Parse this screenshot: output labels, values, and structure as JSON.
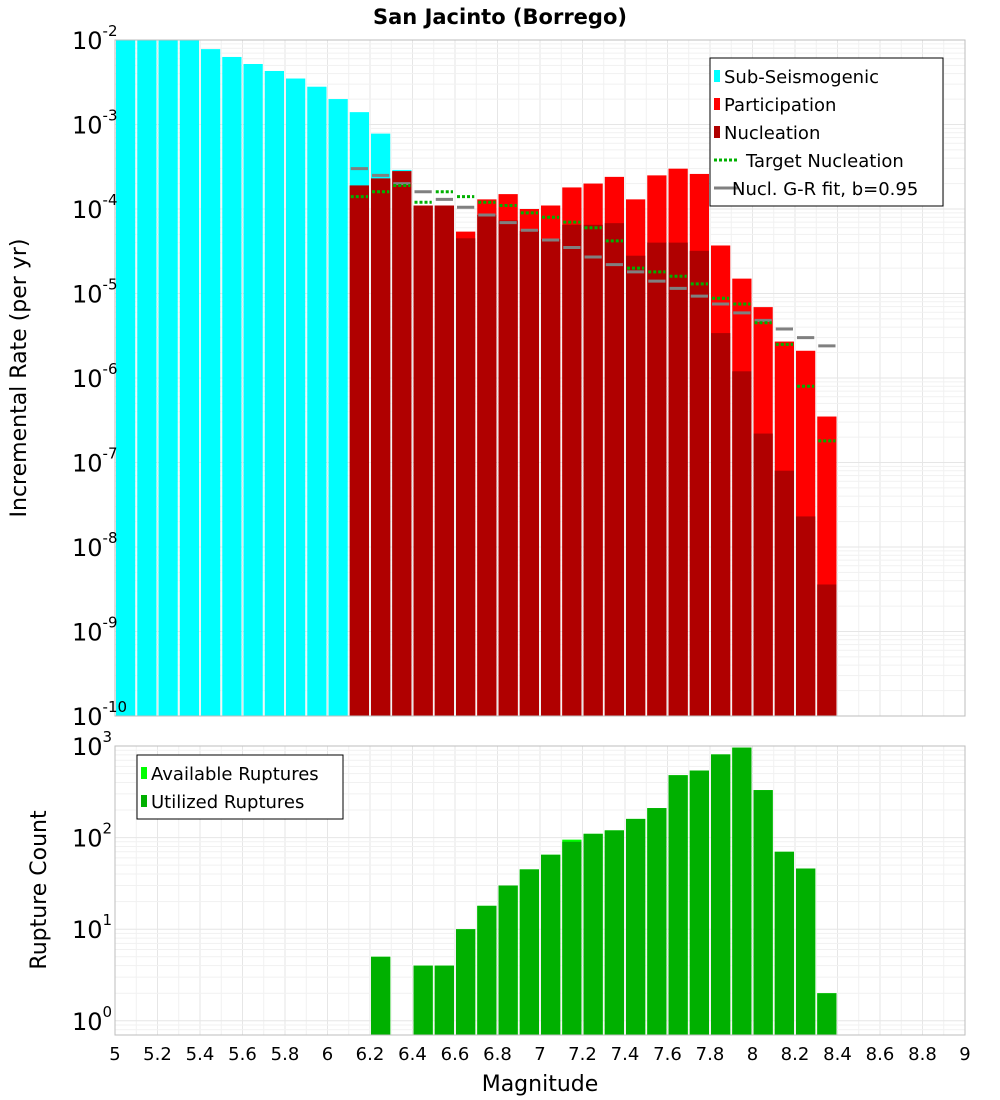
{
  "chart_data": [
    {
      "type": "bar",
      "title": "San Jacinto (Borrego)",
      "xlabel": "",
      "ylabel": "Incremental Rate (per yr)",
      "yscale": "log",
      "ylim": [
        1e-10,
        0.01
      ],
      "xlim": [
        5,
        9
      ],
      "bin_width": 0.1,
      "grid": true,
      "legend_position": "top-right",
      "y_ticks": [
        {
          "base": "10",
          "exp": "-10"
        },
        {
          "base": "10",
          "exp": "-9"
        },
        {
          "base": "10",
          "exp": "-8"
        },
        {
          "base": "10",
          "exp": "-7"
        },
        {
          "base": "10",
          "exp": "-6"
        },
        {
          "base": "10",
          "exp": "-5"
        },
        {
          "base": "10",
          "exp": "-4"
        },
        {
          "base": "10",
          "exp": "-3"
        },
        {
          "base": "10",
          "exp": "-2"
        }
      ],
      "legend": [
        {
          "label": "Sub-Seismogenic",
          "color": "#00ffff",
          "style": "bar"
        },
        {
          "label": "Participation",
          "color": "#ff0000",
          "style": "bar"
        },
        {
          "label": "Nucleation",
          "color": "#b00000",
          "style": "bar"
        },
        {
          "label": "Target Nucleation",
          "color": "#00b000",
          "style": "dotted"
        },
        {
          "label": "Nucl. G-R fit, b=0.95",
          "color": "#808080",
          "style": "line"
        }
      ],
      "series": [
        {
          "name": "Sub-Seismogenic",
          "color": "#00ffff",
          "x": [
            5.0,
            5.1,
            5.2,
            5.3,
            5.4,
            5.5,
            5.6,
            5.7,
            5.8,
            5.9,
            6.0,
            6.1,
            6.2,
            6.3
          ],
          "values": [
            0.01,
            0.01,
            0.01,
            0.01,
            0.0078,
            0.0063,
            0.0052,
            0.0043,
            0.0035,
            0.0028,
            0.002,
            0.0014,
            0.00078,
            0.00029
          ]
        },
        {
          "name": "Participation",
          "color": "#ff0000",
          "x": [
            6.1,
            6.2,
            6.3,
            6.4,
            6.5,
            6.6,
            6.7,
            6.8,
            6.9,
            7.0,
            7.1,
            7.2,
            7.3,
            7.4,
            7.5,
            7.6,
            7.7,
            7.8,
            7.9,
            8.0,
            8.1,
            8.2,
            8.3
          ],
          "values": [
            0.00019,
            0.00023,
            0.00028,
            0.00011,
            0.00011,
            5.4e-05,
            0.00013,
            0.00015,
            0.0001,
            0.00011,
            0.00018,
            0.0002,
            0.00024,
            0.00013,
            0.00025,
            0.0003,
            0.00026,
            3.7e-05,
            1.5e-05,
            6.9e-06,
            2.7e-06,
            2.1e-06,
            3.5e-07
          ]
        },
        {
          "name": "Nucleation",
          "color": "#b00000",
          "x": [
            6.1,
            6.2,
            6.3,
            6.4,
            6.5,
            6.6,
            6.7,
            6.8,
            6.9,
            7.0,
            7.1,
            7.2,
            7.3,
            7.4,
            7.5,
            7.6,
            7.7,
            7.8,
            7.9,
            8.0,
            8.1,
            8.2,
            8.3
          ],
          "values": [
            0.00019,
            0.00023,
            0.00028,
            0.00011,
            0.00011,
            4.5e-05,
            8.5e-05,
            7.3e-05,
            5.5e-05,
            4.4e-05,
            6.5e-05,
            6.5e-05,
            6.8e-05,
            2.8e-05,
            4e-05,
            4e-05,
            3.2e-05,
            3.4e-06,
            1.2e-06,
            2.2e-07,
            8e-08,
            2.3e-08,
            3.6e-09
          ]
        },
        {
          "name": "Target Nucleation",
          "color": "#00b000",
          "style": "dotted",
          "x": [
            6.1,
            6.2,
            6.3,
            6.4,
            6.5,
            6.6,
            6.7,
            6.8,
            6.9,
            7.0,
            7.1,
            7.2,
            7.3,
            7.4,
            7.5,
            7.6,
            7.7,
            7.8,
            7.9,
            8.0,
            8.1,
            8.2,
            8.3
          ],
          "values": [
            0.00014,
            0.00016,
            0.00019,
            0.00012,
            0.00016,
            0.00014,
            0.00012,
            0.00011,
            9e-05,
            8e-05,
            7e-05,
            6e-05,
            4.2e-05,
            2e-05,
            1.8e-05,
            1.6e-05,
            1.3e-05,
            8.8e-06,
            7.5e-06,
            4.5e-06,
            2.5e-06,
            8e-07,
            1.8e-07
          ]
        },
        {
          "name": "Nucl. G-R fit, b=0.95",
          "color": "#808080",
          "style": "line",
          "x": [
            6.1,
            6.2,
            6.3,
            6.4,
            6.5,
            6.6,
            6.7,
            6.8,
            6.9,
            7.0,
            7.1,
            7.2,
            7.3,
            7.4,
            7.5,
            7.6,
            7.7,
            7.8,
            7.9,
            8.0,
            8.1,
            8.2,
            8.3
          ],
          "values": [
            0.0003,
            0.00025,
            0.0002,
            0.00016,
            0.00013,
            0.000105,
            8.5e-05,
            6.9e-05,
            5.6e-05,
            4.3e-05,
            3.5e-05,
            2.7e-05,
            2.2e-05,
            1.8e-05,
            1.4e-05,
            1.15e-05,
            9.3e-06,
            7.5e-06,
            5.9e-06,
            4.8e-06,
            3.8e-06,
            3e-06,
            2.4e-06
          ]
        }
      ]
    },
    {
      "type": "bar",
      "title": "",
      "xlabel": "Magnitude",
      "ylabel": "Rupture Count",
      "yscale": "log",
      "ylim": [
        0.7,
        1000
      ],
      "xlim": [
        5,
        9
      ],
      "bin_width": 0.1,
      "grid": true,
      "legend_position": "top-left",
      "x_ticks": [
        "5",
        "5.2",
        "5.4",
        "5.6",
        "5.8",
        "6",
        "6.2",
        "6.4",
        "6.6",
        "6.8",
        "7",
        "7.2",
        "7.4",
        "7.6",
        "7.8",
        "8",
        "8.2",
        "8.4",
        "8.6",
        "8.8",
        "9"
      ],
      "y_ticks": [
        {
          "base": "10",
          "exp": "0"
        },
        {
          "base": "10",
          "exp": "1"
        },
        {
          "base": "10",
          "exp": "2"
        },
        {
          "base": "10",
          "exp": "3"
        }
      ],
      "legend": [
        {
          "label": "Available Ruptures",
          "color": "#00ff00",
          "style": "bar"
        },
        {
          "label": "Utilized Ruptures",
          "color": "#00b000",
          "style": "bar"
        }
      ],
      "series": [
        {
          "name": "Available Ruptures",
          "color": "#00ff00",
          "x": [
            6.2,
            6.4,
            6.5,
            6.6,
            6.7,
            6.8,
            6.9,
            7.0,
            7.1,
            7.2,
            7.3,
            7.4,
            7.5,
            7.6,
            7.7,
            7.8,
            7.9,
            8.0,
            8.1,
            8.2,
            8.3
          ],
          "values": [
            5,
            4,
            4,
            10,
            18,
            30,
            45,
            65,
            95,
            110,
            120,
            160,
            210,
            480,
            540,
            810,
            960,
            330,
            70,
            46,
            2
          ]
        },
        {
          "name": "Utilized Ruptures",
          "color": "#00b000",
          "x": [
            6.2,
            6.4,
            6.5,
            6.6,
            6.7,
            6.8,
            6.9,
            7.0,
            7.1,
            7.2,
            7.3,
            7.4,
            7.5,
            7.6,
            7.7,
            7.8,
            7.9,
            8.0,
            8.1,
            8.2,
            8.3
          ],
          "values": [
            5,
            4,
            4,
            10,
            18,
            30,
            45,
            65,
            90,
            110,
            120,
            160,
            210,
            480,
            540,
            810,
            960,
            330,
            70,
            46,
            2
          ]
        }
      ]
    }
  ]
}
